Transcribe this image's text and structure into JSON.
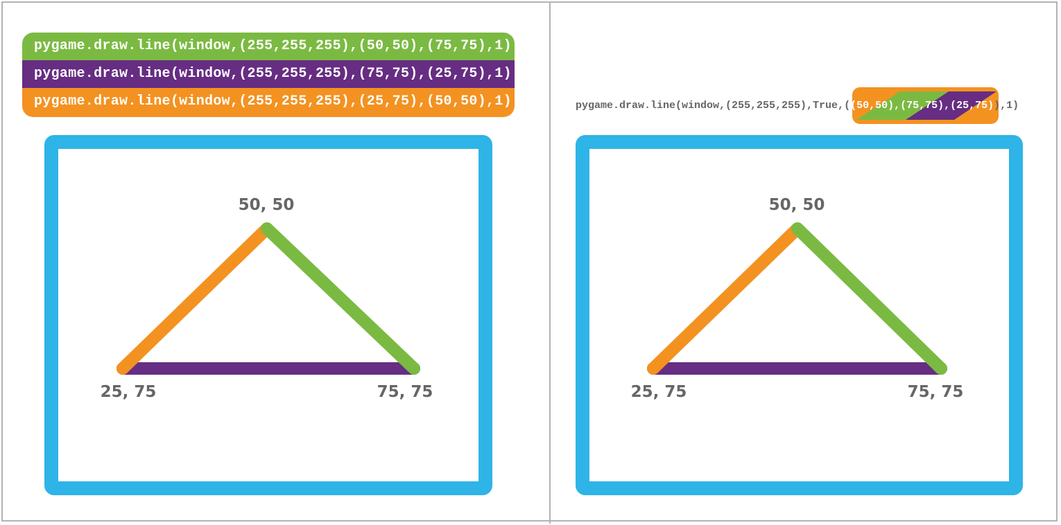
{
  "colors": {
    "green": "#7bba42",
    "purple": "#662d82",
    "orange": "#f39221",
    "blue": "#2eb4e6",
    "label": "#666666"
  },
  "left": {
    "code_lines": [
      "pygame.draw.line(window,(255,255,255),(50,50),(75,75),1)",
      "pygame.draw.line(window,(255,255,255),(75,75),(25,75),1)",
      "pygame.draw.line(window,(255,255,255),(25,75),(50,50),1)"
    ],
    "labels": {
      "top": "50, 50",
      "bottom_left": "25, 75",
      "bottom_right": "75, 75"
    }
  },
  "right": {
    "code_prefix": "pygame.draw.line(window,(255,255,255),True,(",
    "code_points": "(50,50),(75,75),(25,75)",
    "code_suffix": "),1)",
    "labels": {
      "top": "50, 50",
      "bottom_left": "25, 75",
      "bottom_right": "75, 75"
    }
  }
}
